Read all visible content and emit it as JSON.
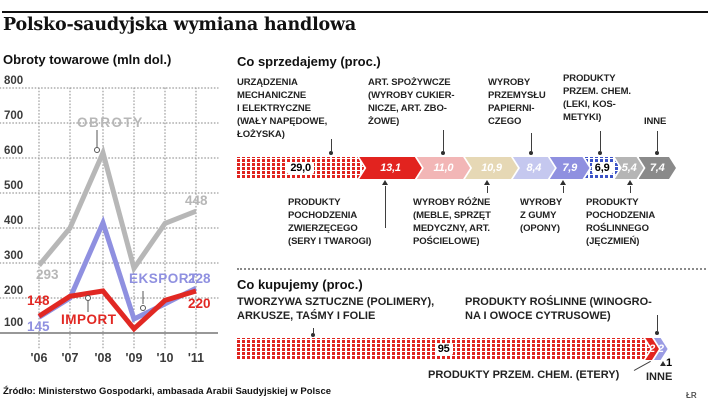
{
  "title": "Polsko-saudyjska wymiana handlowa",
  "source": "Źródło: Ministerstwo Gospodarki, ambasada Arabii Saudyjskiej w Polsce",
  "credit": "ŁR",
  "accent_colors": {
    "red": "#e12823",
    "purple": "#8f90e0",
    "gray": "#b7b7b7",
    "pink": "#f2b6b6",
    "beige": "#e6d8b5",
    "pale_periwinkle": "#c5c8ef",
    "silver": "#b5b5b5",
    "dark_gray": "#8a8a8a",
    "pattern_blue": "#3b52c7"
  },
  "chart_data": [
    {
      "type": "line",
      "title": "Obroty towarowe (mln dol.)",
      "unit": "mln dol.",
      "x": [
        "'06",
        "'07",
        "'08",
        "'09",
        "'10",
        "'11"
      ],
      "y_ticks": [
        "800",
        "700",
        "600",
        "500",
        "400",
        "300",
        "200",
        "100"
      ],
      "ylim": [
        100,
        800
      ],
      "grid": true,
      "series": [
        {
          "name": "OBROTY",
          "color": "#b7b7b7",
          "values": [
            293,
            400,
            615,
            285,
            413,
            448
          ]
        },
        {
          "name": "EKSPORT",
          "color": "#8f90e0",
          "values": [
            145,
            200,
            415,
            140,
            183,
            228
          ]
        },
        {
          "name": "IMPORT",
          "color": "#e12823",
          "values": [
            148,
            205,
            220,
            112,
            193,
            220
          ]
        }
      ],
      "labeled_values": {
        "OBROTY_06": 293,
        "OBROTY_11": 448,
        "EKSPORT_06": 145,
        "EKSPORT_11": 228,
        "IMPORT_06": 148,
        "IMPORT_11": 220
      }
    },
    {
      "type": "bar",
      "stacked": true,
      "title": "Co sprzedajemy (proc.)",
      "segments": [
        {
          "label": "URZĄDZENIA MECHANICZNE I ELEKTRYCZNE (WAŁY NAPĘDOWE, ŁOŻYSKA)",
          "value": 29.0,
          "display": "29,0",
          "pattern": "red-dots",
          "text": "pill"
        },
        {
          "label": "PRODUKTY POCHODZENIA ZWIERZĘCEGO (SERY I TWAROGI)",
          "value": 13.1,
          "display": "13,1",
          "color": "#e2231f"
        },
        {
          "label": "ART. SPOŻYWCZE (WYROBY CUKIERNICZE, ART. ZBOŻOWE)",
          "value": 11.0,
          "display": "11,0",
          "color": "#f2b6b6"
        },
        {
          "label": "WYROBY RÓŻNE (MEBLE, SPRZĘT MEDYCZNY, ART. POŚCIELOWE)",
          "value": 10.9,
          "display": "10,9",
          "color": "#e6d8b5"
        },
        {
          "label": "WYROBY PRZEMYSŁU PAPIERNICZEGO",
          "value": 8.4,
          "display": "8,4",
          "color": "#c5c8ef"
        },
        {
          "label": "WYROBY Z GUMY (OPONY)",
          "value": 7.9,
          "display": "7,9",
          "color": "#8f90e0"
        },
        {
          "label": "PRODUKTY PRZEM. CHEM. (LEKI, KOSMETYKI)",
          "value": 6.9,
          "display": "6,9",
          "pattern": "blue-dots",
          "text": "pill"
        },
        {
          "label": "PRODUKTY POCHODZENIA ROŚLINNEGO (JĘCZMIEŃ)",
          "value": 5.4,
          "display": "5,4",
          "color": "#b5b5b5"
        },
        {
          "label": "INNE",
          "value": 7.4,
          "display": "7,4",
          "color": "#8a8a8a"
        }
      ]
    },
    {
      "type": "bar",
      "stacked": true,
      "title": "Co kupujemy (proc.)",
      "segments": [
        {
          "label": "TWORZYWA SZTUCZNE (POLIMERY), ARKUSZE, TAŚMY I FOLIE",
          "value": 95,
          "display": "95",
          "pattern": "red-dots",
          "text": "pill"
        },
        {
          "label": "PRODUKTY PRZEM. CHEM. (ETERY)",
          "value": 2,
          "display": "2",
          "color": "#e2231f"
        },
        {
          "label": "PRODUKTY ROŚLINNE (WINOGRONA I OWOCE CYTRUSOWE)",
          "value": 2,
          "display": "2",
          "color": "#9b9ce4"
        },
        {
          "label": "INNE",
          "value": 1,
          "display": "1",
          "tip_only": true
        }
      ]
    }
  ],
  "sell": {
    "top_labels": [
      "URZĄDZENIA\nMECHANICZNE\nI ELEKTRYCZNE\n(WAŁY NAPĘDOWE,\nŁOŻYSKA)",
      "ART. SPOŻYWCZE\n(WYROBY CUKIER-\nNICZE, ART. ZBO-\nŻOWE)",
      "WYROBY\nPRZEMYSŁU\nPAPIERNI-\nCZEGO",
      "PRODUKTY\nPRZEM. CHEM.\n(LEKI, KOS-\nMETYKI)",
      "INNE"
    ],
    "bottom_labels": [
      "PRODUKTY\nPOCHODZENIA\nZWIERZĘCEGO\n(SERY I TWAROGI)",
      "WYROBY RÓŻNE\n(MEBLE, SPRZĘT\nMEDYCZNY, ART.\nPOŚCIELOWE)",
      "WYROBY\nZ GUMY\n(OPONY)",
      "PRODUKTY\nPOCHODZENIA\nROŚLINNEGO\n(JĘCZMIEŃ)"
    ]
  },
  "buy": {
    "top_labels": [
      "TWORZYWA SZTUCZNE (POLIMERY),\nARKUSZE, TAŚMY I FOLIE",
      "PRODUKTY ROŚLINNE (WINOGRO-\nNA I OWOCE CYTRUSOWE)"
    ],
    "chem_label": "PRODUKTY PRZEM. CHEM. (ETERY)",
    "inne_label": "INNE"
  }
}
